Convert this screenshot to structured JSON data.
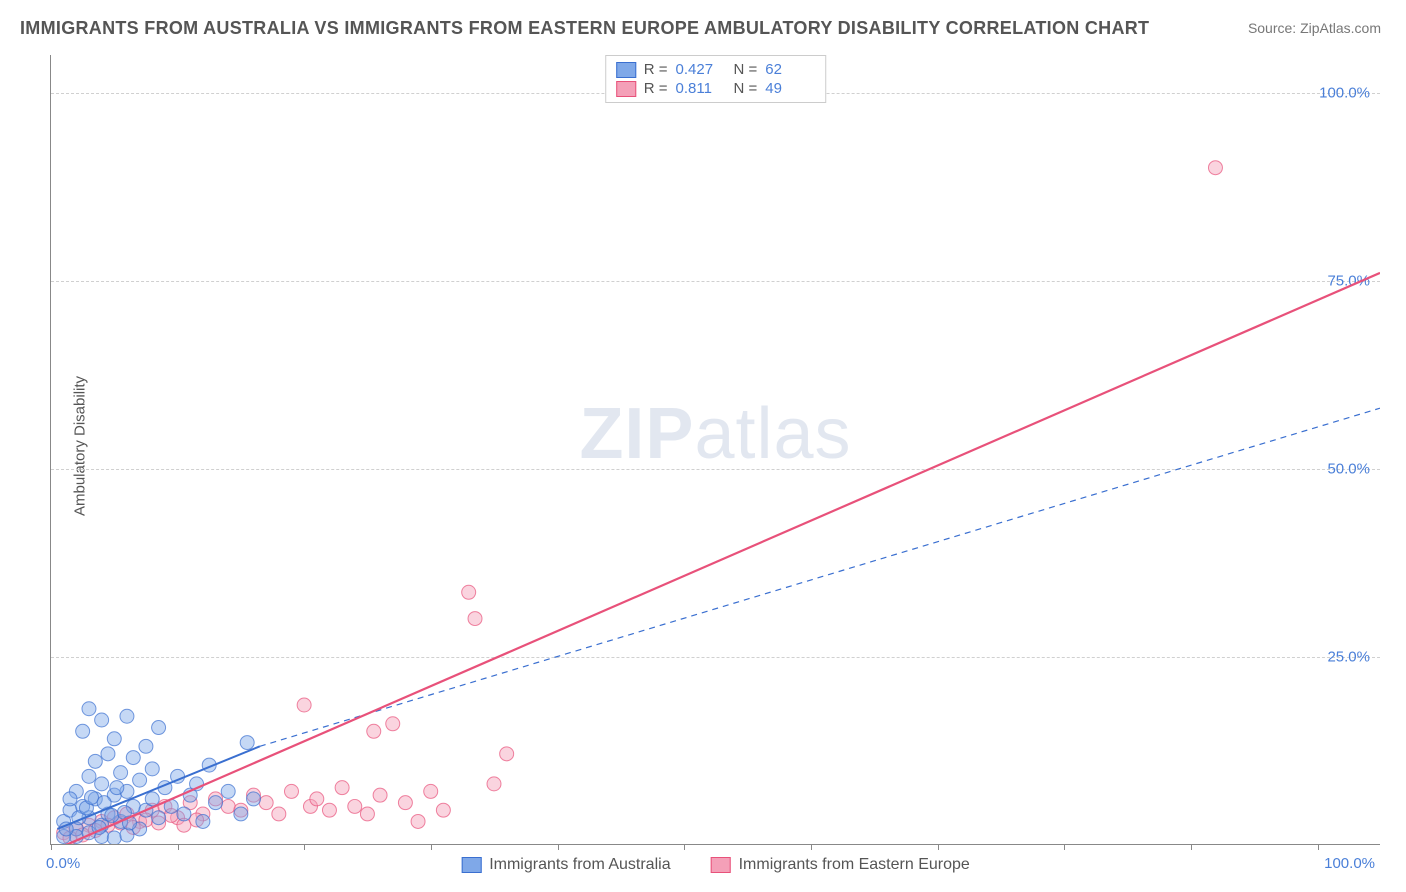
{
  "title": "IMMIGRANTS FROM AUSTRALIA VS IMMIGRANTS FROM EASTERN EUROPE AMBULATORY DISABILITY CORRELATION CHART",
  "source": "Source: ZipAtlas.com",
  "ylabel": "Ambulatory Disability",
  "watermark_bold": "ZIP",
  "watermark_rest": "atlas",
  "chart": {
    "type": "scatter",
    "background_color": "#ffffff",
    "grid_color": "#d0d0d0",
    "axis_color": "#888888",
    "label_color": "#4a7fd8",
    "title_color": "#555555",
    "title_fontsize": 18,
    "label_fontsize": 15,
    "xlim": [
      0,
      105
    ],
    "ylim": [
      0,
      105
    ],
    "ytick_values": [
      25,
      50,
      75,
      100
    ],
    "ytick_labels": [
      "25.0%",
      "50.0%",
      "75.0%",
      "100.0%"
    ],
    "xtick_values": [
      0,
      10,
      20,
      30,
      40,
      50,
      60,
      70,
      80,
      90,
      100
    ],
    "xtick_label_left": "0.0%",
    "xtick_label_right": "100.0%",
    "marker_radius": 7,
    "marker_opacity": 0.45,
    "series": [
      {
        "name": "Immigrants from Australia",
        "fill_color": "#7fa8e8",
        "stroke_color": "#3a6fd0",
        "r_value": "0.427",
        "n_value": "62",
        "points": [
          [
            1.0,
            3.0
          ],
          [
            1.5,
            4.5
          ],
          [
            2.0,
            2.0
          ],
          [
            2.0,
            7.0
          ],
          [
            2.5,
            5.0
          ],
          [
            2.5,
            15.0
          ],
          [
            3.0,
            3.5
          ],
          [
            3.0,
            9.0
          ],
          [
            3.0,
            18.0
          ],
          [
            3.5,
            6.0
          ],
          [
            3.5,
            11.0
          ],
          [
            4.0,
            2.5
          ],
          [
            4.0,
            8.0
          ],
          [
            4.0,
            16.5
          ],
          [
            4.5,
            4.0
          ],
          [
            4.5,
            12.0
          ],
          [
            5.0,
            6.5
          ],
          [
            5.0,
            14.0
          ],
          [
            5.5,
            3.0
          ],
          [
            5.5,
            9.5
          ],
          [
            6.0,
            7.0
          ],
          [
            6.0,
            17.0
          ],
          [
            6.5,
            5.0
          ],
          [
            6.5,
            11.5
          ],
          [
            7.0,
            2.0
          ],
          [
            7.0,
            8.5
          ],
          [
            7.5,
            4.5
          ],
          [
            7.5,
            13.0
          ],
          [
            8.0,
            6.0
          ],
          [
            8.0,
            10.0
          ],
          [
            8.5,
            3.5
          ],
          [
            8.5,
            15.5
          ],
          [
            9.0,
            7.5
          ],
          [
            9.5,
            5.0
          ],
          [
            10.0,
            9.0
          ],
          [
            10.5,
            4.0
          ],
          [
            11.0,
            6.5
          ],
          [
            11.5,
            8.0
          ],
          [
            12.0,
            3.0
          ],
          [
            12.5,
            10.5
          ],
          [
            13.0,
            5.5
          ],
          [
            14.0,
            7.0
          ],
          [
            15.0,
            4.0
          ],
          [
            15.5,
            13.5
          ],
          [
            16.0,
            6.0
          ],
          [
            2.0,
            1.0
          ],
          [
            3.0,
            1.5
          ],
          [
            4.0,
            1.0
          ],
          [
            5.0,
            0.8
          ],
          [
            6.0,
            1.2
          ],
          [
            1.0,
            1.0
          ],
          [
            1.2,
            2.0
          ],
          [
            1.5,
            6.0
          ],
          [
            2.2,
            3.5
          ],
          [
            2.8,
            4.8
          ],
          [
            3.2,
            6.2
          ],
          [
            3.8,
            2.2
          ],
          [
            4.2,
            5.5
          ],
          [
            4.8,
            3.8
          ],
          [
            5.2,
            7.5
          ],
          [
            5.8,
            4.2
          ],
          [
            6.2,
            2.8
          ]
        ],
        "trend_line": {
          "x1": 0.5,
          "y1": 2.0,
          "x2": 16.5,
          "y2": 13.0,
          "width": 2,
          "style": "solid"
        },
        "trend_line_ext": {
          "x1": 16.5,
          "y1": 13.0,
          "x2": 105,
          "y2": 58.0,
          "width": 1.2,
          "style": "dashed"
        }
      },
      {
        "name": "Immigrants from Eastern Europe",
        "fill_color": "#f4a0b8",
        "stroke_color": "#e8517a",
        "r_value": "0.811",
        "n_value": "49",
        "points": [
          [
            1.0,
            1.5
          ],
          [
            2.0,
            2.0
          ],
          [
            3.0,
            2.5
          ],
          [
            4.0,
            3.0
          ],
          [
            5.0,
            3.5
          ],
          [
            6.0,
            4.0
          ],
          [
            7.0,
            3.0
          ],
          [
            8.0,
            4.5
          ],
          [
            9.0,
            5.0
          ],
          [
            10.0,
            3.5
          ],
          [
            11.0,
            5.5
          ],
          [
            12.0,
            4.0
          ],
          [
            13.0,
            6.0
          ],
          [
            14.0,
            5.0
          ],
          [
            15.0,
            4.5
          ],
          [
            16.0,
            6.5
          ],
          [
            17.0,
            5.5
          ],
          [
            18.0,
            4.0
          ],
          [
            19.0,
            7.0
          ],
          [
            20.0,
            18.5
          ],
          [
            20.5,
            5.0
          ],
          [
            21.0,
            6.0
          ],
          [
            22.0,
            4.5
          ],
          [
            23.0,
            7.5
          ],
          [
            24.0,
            5.0
          ],
          [
            25.0,
            4.0
          ],
          [
            25.5,
            15.0
          ],
          [
            26.0,
            6.5
          ],
          [
            27.0,
            16.0
          ],
          [
            28.0,
            5.5
          ],
          [
            29.0,
            3.0
          ],
          [
            30.0,
            7.0
          ],
          [
            31.0,
            4.5
          ],
          [
            33.0,
            33.5
          ],
          [
            33.5,
            30.0
          ],
          [
            35.0,
            8.0
          ],
          [
            36.0,
            12.0
          ],
          [
            92.0,
            90.0
          ],
          [
            1.5,
            0.8
          ],
          [
            2.5,
            1.2
          ],
          [
            3.5,
            1.8
          ],
          [
            4.5,
            2.5
          ],
          [
            5.5,
            2.8
          ],
          [
            6.5,
            2.2
          ],
          [
            7.5,
            3.2
          ],
          [
            8.5,
            2.8
          ],
          [
            9.5,
            3.8
          ],
          [
            10.5,
            2.5
          ],
          [
            11.5,
            3.2
          ]
        ],
        "trend_line": {
          "x1": 0.0,
          "y1": -1.0,
          "x2": 105,
          "y2": 76.0,
          "width": 2.2,
          "style": "solid"
        }
      }
    ]
  },
  "legend_top": {
    "r_label": "R =",
    "n_label": "N ="
  },
  "legend_bottom": {
    "items": [
      "Immigrants from Australia",
      "Immigrants from Eastern Europe"
    ]
  }
}
